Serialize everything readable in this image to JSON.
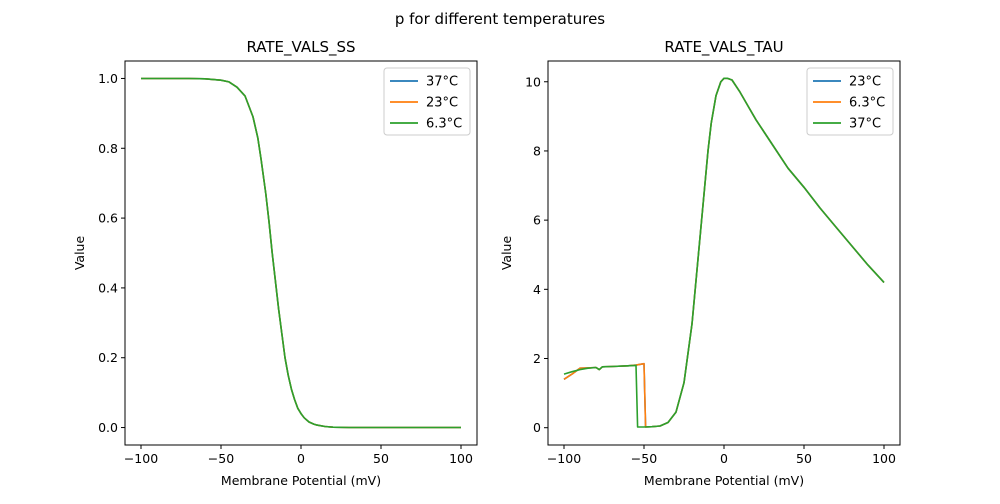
{
  "figure_title": "p for different temperatures",
  "chart_data": [
    {
      "type": "line",
      "title": "RATE_VALS_SS",
      "xlabel": "Membrane Potential (mV)",
      "ylabel": "Value",
      "xlim": [
        -110,
        110
      ],
      "ylim": [
        -0.05,
        1.05
      ],
      "xticks": [
        -100,
        -50,
        0,
        50,
        100
      ],
      "xtick_labels": [
        "−100",
        "−50",
        "0",
        "50",
        "100"
      ],
      "yticks": [
        0.0,
        0.2,
        0.4,
        0.6,
        0.8,
        1.0
      ],
      "ytick_labels": [
        "0.0",
        "0.2",
        "0.4",
        "0.6",
        "0.8",
        "1.0"
      ],
      "grid": false,
      "legend_position": "top-right",
      "series": [
        {
          "name": "37°C",
          "color": "#1f77b4",
          "x": [
            -100,
            -90,
            -80,
            -70,
            -60,
            -50,
            -45,
            -40,
            -35,
            -30,
            -27,
            -25,
            -22,
            -20,
            -18,
            -16,
            -14,
            -12,
            -10,
            -8,
            -6,
            -4,
            -2,
            0,
            2,
            5,
            8,
            10,
            15,
            20,
            30,
            40,
            50,
            60,
            70,
            80,
            90,
            100
          ],
          "y": [
            1.0,
            1.0,
            1.0,
            1.0,
            0.999,
            0.995,
            0.99,
            0.975,
            0.95,
            0.89,
            0.83,
            0.77,
            0.67,
            0.59,
            0.5,
            0.42,
            0.34,
            0.27,
            0.2,
            0.15,
            0.11,
            0.08,
            0.055,
            0.04,
            0.028,
            0.016,
            0.01,
            0.007,
            0.003,
            0.001,
            0.0,
            0.0,
            0.0,
            0.0,
            0.0,
            0.0,
            0.0,
            0.0
          ]
        },
        {
          "name": "23°C",
          "color": "#ff7f0e",
          "x": [
            -100,
            -90,
            -80,
            -70,
            -60,
            -50,
            -45,
            -40,
            -35,
            -30,
            -27,
            -25,
            -22,
            -20,
            -18,
            -16,
            -14,
            -12,
            -10,
            -8,
            -6,
            -4,
            -2,
            0,
            2,
            5,
            8,
            10,
            15,
            20,
            30,
            40,
            50,
            60,
            70,
            80,
            90,
            100
          ],
          "y": [
            1.0,
            1.0,
            1.0,
            1.0,
            0.999,
            0.995,
            0.99,
            0.975,
            0.95,
            0.89,
            0.83,
            0.77,
            0.67,
            0.59,
            0.5,
            0.42,
            0.34,
            0.27,
            0.2,
            0.15,
            0.11,
            0.08,
            0.055,
            0.04,
            0.028,
            0.016,
            0.01,
            0.007,
            0.003,
            0.001,
            0.0,
            0.0,
            0.0,
            0.0,
            0.0,
            0.0,
            0.0,
            0.0
          ]
        },
        {
          "name": "6.3°C",
          "color": "#2ca02c",
          "x": [
            -100,
            -90,
            -80,
            -70,
            -60,
            -50,
            -45,
            -40,
            -35,
            -30,
            -27,
            -25,
            -22,
            -20,
            -18,
            -16,
            -14,
            -12,
            -10,
            -8,
            -6,
            -4,
            -2,
            0,
            2,
            5,
            8,
            10,
            15,
            20,
            30,
            40,
            50,
            60,
            70,
            80,
            90,
            100
          ],
          "y": [
            1.0,
            1.0,
            1.0,
            1.0,
            0.999,
            0.995,
            0.99,
            0.975,
            0.95,
            0.89,
            0.83,
            0.77,
            0.67,
            0.59,
            0.5,
            0.42,
            0.34,
            0.27,
            0.2,
            0.15,
            0.11,
            0.08,
            0.055,
            0.04,
            0.028,
            0.016,
            0.01,
            0.007,
            0.003,
            0.001,
            0.0,
            0.0,
            0.0,
            0.0,
            0.0,
            0.0,
            0.0,
            0.0
          ]
        }
      ]
    },
    {
      "type": "line",
      "title": "RATE_VALS_TAU",
      "xlabel": "Membrane Potential (mV)",
      "ylabel": "Value",
      "xlim": [
        -110,
        110
      ],
      "ylim": [
        -0.5,
        10.6
      ],
      "xticks": [
        -100,
        -50,
        0,
        50,
        100
      ],
      "xtick_labels": [
        "−100",
        "−50",
        "0",
        "50",
        "100"
      ],
      "yticks": [
        0,
        2,
        4,
        6,
        8,
        10
      ],
      "ytick_labels": [
        "0",
        "2",
        "4",
        "6",
        "8",
        "10"
      ],
      "grid": false,
      "legend_position": "top-right",
      "series": [
        {
          "name": "23°C",
          "color": "#1f77b4",
          "x": [
            -100,
            -95,
            -90,
            -85,
            -80,
            -78,
            -76,
            -70,
            -60,
            -55,
            -50,
            -49,
            -45,
            -40,
            -35,
            -30,
            -25,
            -20,
            -15,
            -10,
            -8,
            -5,
            -2,
            0,
            2,
            5,
            10,
            15,
            20,
            30,
            40,
            50,
            60,
            70,
            80,
            90,
            100
          ],
          "y": [
            1.4,
            1.55,
            1.72,
            1.73,
            1.74,
            1.68,
            1.76,
            1.77,
            1.79,
            1.81,
            1.85,
            0.02,
            0.03,
            0.05,
            0.15,
            0.45,
            1.3,
            3.0,
            5.5,
            8.0,
            8.8,
            9.6,
            10.0,
            10.1,
            10.1,
            10.05,
            9.7,
            9.3,
            8.9,
            8.2,
            7.5,
            6.95,
            6.35,
            5.8,
            5.25,
            4.7,
            4.2
          ]
        },
        {
          "name": "6.3°C",
          "color": "#ff7f0e",
          "x": [
            -100,
            -95,
            -90,
            -85,
            -80,
            -78,
            -76,
            -70,
            -60,
            -55,
            -50,
            -49,
            -45,
            -40,
            -35,
            -30,
            -25,
            -20,
            -15,
            -10,
            -8,
            -5,
            -2,
            0,
            2,
            5,
            10,
            15,
            20,
            30,
            40,
            50,
            60,
            70,
            80,
            90,
            100
          ],
          "y": [
            1.4,
            1.55,
            1.72,
            1.73,
            1.74,
            1.68,
            1.76,
            1.77,
            1.79,
            1.81,
            1.85,
            0.02,
            0.03,
            0.05,
            0.15,
            0.45,
            1.3,
            3.0,
            5.5,
            8.0,
            8.8,
            9.6,
            10.0,
            10.1,
            10.1,
            10.05,
            9.7,
            9.3,
            8.9,
            8.2,
            7.5,
            6.95,
            6.35,
            5.8,
            5.25,
            4.7,
            4.2
          ]
        },
        {
          "name": "37°C",
          "color": "#2ca02c",
          "x": [
            -100,
            -95,
            -90,
            -85,
            -80,
            -78,
            -76,
            -70,
            -60,
            -55,
            -54,
            -50,
            -45,
            -40,
            -35,
            -30,
            -25,
            -20,
            -15,
            -10,
            -8,
            -5,
            -2,
            0,
            2,
            5,
            10,
            15,
            20,
            30,
            40,
            50,
            60,
            70,
            80,
            90,
            100
          ],
          "y": [
            1.55,
            1.62,
            1.68,
            1.72,
            1.74,
            1.68,
            1.76,
            1.77,
            1.79,
            1.8,
            0.02,
            0.02,
            0.03,
            0.05,
            0.15,
            0.45,
            1.3,
            3.0,
            5.5,
            8.0,
            8.8,
            9.6,
            10.0,
            10.1,
            10.1,
            10.05,
            9.7,
            9.3,
            8.9,
            8.2,
            7.5,
            6.95,
            6.35,
            5.8,
            5.25,
            4.7,
            4.2
          ]
        }
      ]
    }
  ]
}
